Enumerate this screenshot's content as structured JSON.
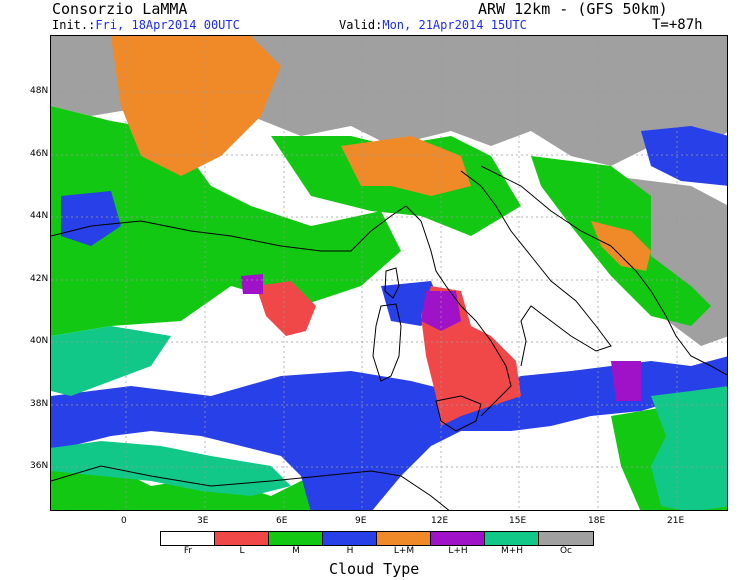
{
  "header": {
    "title": "Consorzio LaMMA",
    "model": "ARW 12km - (GFS 50km)",
    "init_label": "Init.:",
    "init_value": "Fri, 18Apr2014 00UTC",
    "valid_label": "Valid:",
    "valid_value": "Mon, 21Apr2014 15UTC",
    "forecast_hour": "T=+87h"
  },
  "map": {
    "lat_labels": [
      "48N",
      "46N",
      "44N",
      "42N",
      "40N",
      "38N",
      "36N"
    ],
    "lon_labels": [
      "0",
      "3E",
      "6E",
      "9E",
      "12E",
      "15E",
      "18E",
      "21E"
    ]
  },
  "legend": {
    "title": "Cloud Type",
    "items": [
      {
        "label": "Fr",
        "color": "#ffffff"
      },
      {
        "label": "L",
        "color": "#f04848"
      },
      {
        "label": "M",
        "color": "#12c812"
      },
      {
        "label": "H",
        "color": "#2840e8"
      },
      {
        "label": "L+M",
        "color": "#f08a28"
      },
      {
        "label": "L+H",
        "color": "#a012c8"
      },
      {
        "label": "M+H",
        "color": "#12c888"
      },
      {
        "label": "Oc",
        "color": "#a0a0a0"
      }
    ]
  },
  "colors": {
    "free": "#ffffff",
    "low": "#f04848",
    "mid": "#12c812",
    "high": "#2840e8",
    "low_mid": "#f08a28",
    "low_high": "#a012c8",
    "mid_high": "#12c888",
    "overcast": "#a0a0a0"
  }
}
